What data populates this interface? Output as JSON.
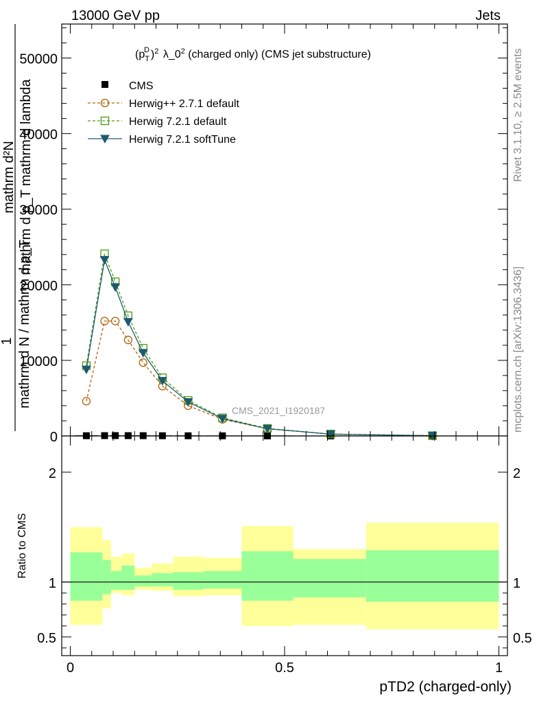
{
  "header": {
    "left": "13000 GeV pp",
    "right": "Jets"
  },
  "side_labels": {
    "rivet": "Rivet 3.1.10, ≥ 2.5M events",
    "mcplots": "mcplots.cern.ch [arXiv:1306.3436]"
  },
  "chart_data": [
    {
      "type": "line",
      "title_base": "(p",
      "title_sub": "T",
      "title_sup": "D",
      "title_rest": ") λ_0",
      "title_sup2": "2",
      "title_sup3": "2",
      "title_tail": " (charged only) (CMS jet substructure)",
      "watermark": "CMS_2021_I1920187",
      "ylabel_line1": "mathrm d²N",
      "ylabel_line2": "mathrm d p_T mathrm d lambda",
      "ylabel_line3": "1",
      "ylabel_line4": "mathrm d N / mathrm d p_T",
      "xlim": [
        0,
        1
      ],
      "ylim": [
        0,
        54500
      ],
      "y_ticks": [
        0,
        10000,
        20000,
        30000,
        40000,
        50000
      ],
      "y_tick_labels": [
        "0",
        "10000",
        "20000",
        "30000",
        "40000",
        "50000"
      ],
      "x": [
        0.0375,
        0.08,
        0.105,
        0.135,
        0.17,
        0.215,
        0.275,
        0.355,
        0.46,
        0.6075,
        0.845
      ],
      "x_err": [
        0.0275,
        0.0075,
        0.0125,
        0.0125,
        0.0175,
        0.0225,
        0.03,
        0.04,
        0.06,
        0.0875,
        0.155
      ],
      "series": [
        {
          "name": "CMS",
          "style": "data",
          "color": "#000000",
          "values": [
            30,
            40,
            45,
            40,
            35,
            28,
            22,
            15,
            10,
            5,
            2
          ]
        },
        {
          "name": "Herwig++ 2.7.1 default",
          "style": "circle",
          "color": "#b45f06",
          "values": [
            4600,
            15200,
            15200,
            12700,
            9700,
            6600,
            4000,
            2200,
            950,
            250,
            35
          ]
        },
        {
          "name": "Herwig 7.2.1 default",
          "style": "square",
          "color": "#4a9a12",
          "values": [
            9300,
            24100,
            20400,
            15900,
            11600,
            7700,
            4700,
            2400,
            1000,
            250,
            35
          ]
        },
        {
          "name": "Herwig 7.2.1 softTune",
          "style": "triangle",
          "color": "#1e5a6e",
          "values": [
            8800,
            23300,
            19700,
            15100,
            11000,
            7300,
            4500,
            2300,
            950,
            240,
            30
          ]
        }
      ]
    },
    {
      "type": "area",
      "ylabel": "Ratio to CMS",
      "xlabel": "pTD2 (charged-only)",
      "xlim": [
        -0.02,
        1.02
      ],
      "ylim": [
        0.33,
        2.33
      ],
      "x_ticks": [
        0,
        0.5,
        1
      ],
      "x_tick_labels": [
        "0",
        "0.5",
        "1"
      ],
      "y_ticks": [
        0.5,
        1,
        2
      ],
      "y_tick_labels": [
        "0.5",
        "1",
        "2"
      ],
      "bin_edges": [
        0,
        0.075,
        0.095,
        0.12,
        0.15,
        0.19,
        0.24,
        0.31,
        0.4,
        0.52,
        0.69,
        1.0
      ],
      "band_outer": {
        "color": "#ffff99",
        "low": [
          0.61,
          0.76,
          0.9,
          0.88,
          0.93,
          0.92,
          0.87,
          0.88,
          0.6,
          0.61,
          0.57
        ],
        "high": [
          1.5,
          1.38,
          1.23,
          1.26,
          1.13,
          1.17,
          1.23,
          1.22,
          1.51,
          1.3,
          1.54
        ]
      },
      "band_inner": {
        "color": "#99ff99",
        "low": [
          0.83,
          0.89,
          0.93,
          0.93,
          0.96,
          0.96,
          0.93,
          0.94,
          0.83,
          0.86,
          0.82
        ],
        "high": [
          1.27,
          1.2,
          1.1,
          1.15,
          1.06,
          1.08,
          1.09,
          1.1,
          1.28,
          1.21,
          1.29
        ]
      },
      "reference_line": 1
    }
  ]
}
